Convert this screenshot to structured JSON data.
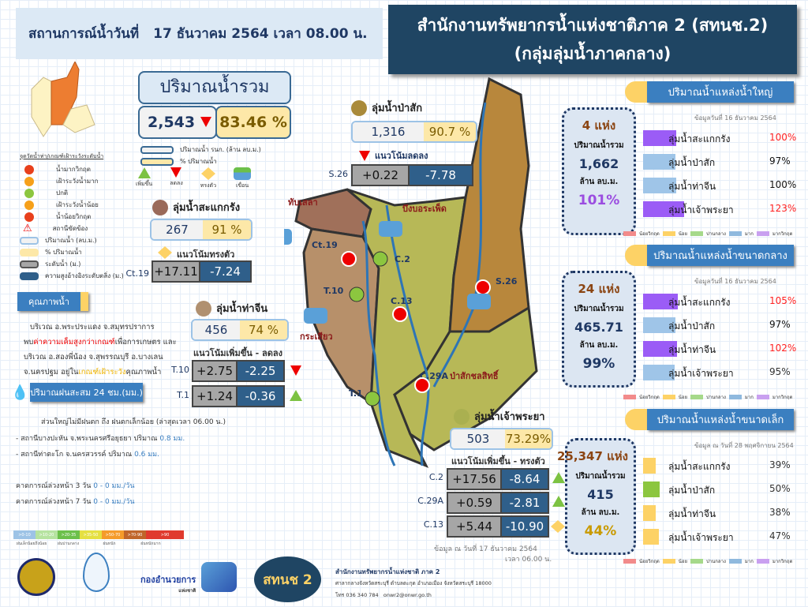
{
  "header": {
    "label": "สถานการณ์น้ำวันที่",
    "date": "17 ธันวาคม 2564 เวลา 08.00 น."
  },
  "title": {
    "line1": "สำนักงานทรัพยากรน้ำแห่งชาติภาค 2 (สทนช.2)",
    "line2": "(กลุ่มลุ่มน้ำภาคกลาง)"
  },
  "total": {
    "heading": "ปริมาณน้ำรวม",
    "volume": "2,543",
    "trend": "down",
    "percent": "83.46 %"
  },
  "box_legend": {
    "volume": "ปริมาณน้ำ รนก. (ล้าน ลบ.ม.)",
    "percent": "% ปริมาณน้ำ"
  },
  "trend_legend": {
    "up": "เพิ่มขึ้น",
    "down": "ลดลง",
    "steady": "ทรงตัว",
    "dam": "เขื่อน"
  },
  "station_legend": {
    "heading": "จุดวัดน้ำท่า/เกณฑ์เฝ้าระวังระดับน้ำ",
    "items": [
      "น้ำมากวิกฤต",
      "เฝ้าระวังน้ำมาก",
      "ปกติ",
      "เฝ้าระวังน้ำน้อย",
      "น้ำน้อยวิกฤต",
      "สถานีขัดข้อง",
      "ปริมาณน้ำ (ลบ.ม.)",
      "% ปริมาณน้ำ",
      "ระดับน้ำ (ม.)",
      "ความสูงอ้างอิงระดับตลิ่ง (ม.)"
    ]
  },
  "colors": {
    "critical": "#e8401c",
    "watch": "#f6a01a",
    "normal": "#8cc63f",
    "navy": "#1f4563",
    "up": "#7cc242",
    "down": "#e00000",
    "steady": "#fdd266"
  },
  "basins": {
    "pasak": {
      "name": "ลุ่มน้ำป่าสัก",
      "volume": "1,316",
      "percent": "90.7 %",
      "trend": "แนวโน้มลดลง",
      "stations": [
        {
          "id": "S.26",
          "level": "+0.22",
          "bank": "-7.78"
        }
      ]
    },
    "sakae": {
      "name": "ลุ่มน้ำสะแกกรัง",
      "volume": "267",
      "percent": "91 %",
      "trend": "แนวโน้มทรงตัว",
      "stations": [
        {
          "id": "Ct.19",
          "level": "+17.11",
          "bank": "-7.24"
        }
      ]
    },
    "thachin": {
      "name": "ลุ่มน้ำท่าจีน",
      "volume": "456",
      "percent": "74 %",
      "trend": "แนวโน้มเพิ่มขึ้น - ลดลง",
      "stations": [
        {
          "id": "T.10",
          "level": "+2.75",
          "bank": "-2.25",
          "trend": "down"
        },
        {
          "id": "T.1",
          "level": "+1.24",
          "bank": "-0.36",
          "trend": "up"
        }
      ]
    },
    "chao": {
      "name": "ลุ่มน้ำเจ้าพระยา",
      "volume": "503",
      "percent": "73.29%",
      "trend": "แนวโน้มเพิ่มขึ้น - ทรงตัว",
      "stations": [
        {
          "id": "C.2",
          "level": "+17.56",
          "bank": "-8.64",
          "trend": "up"
        },
        {
          "id": "C.29A",
          "level": "+0.59",
          "bank": "-2.81",
          "trend": "up"
        },
        {
          "id": "C.13",
          "level": "+5.44",
          "bank": "-10.90",
          "trend": "steady"
        }
      ],
      "note1": "ข้อมูล ณ วันที่ 17 ธันวาคม 2564",
      "note2": "เวลา 06.00 น."
    }
  },
  "map": {
    "dams": [
      "ทับเสลา",
      "บึงบอระเพ็ด",
      "กระเสียว",
      "ป่าสักชลสิทธิ์"
    ],
    "stations": [
      "Ct.19",
      "C.2",
      "T.10",
      "C.13",
      "T.1",
      "C.29A",
      "S.26"
    ]
  },
  "quality": {
    "heading": "คุณภาพน้ำ",
    "l1": "บริเวณ อ.พระประแดง จ.สมุทรปราการ",
    "l2a": "พบ",
    "l2b": "ค่าความเค็มสูงกว่าเกณฑ์",
    "l2c": "เพื่อการเกษตร และ",
    "l3": "บริเวณ อ.สองพี่น้อง จ.สุพรรณบุรี อ.บางเลน",
    "l4a": "จ.นครปฐม อยู่ใน",
    "l4b": "เกณฑ์เฝ้าระวัง",
    "l4c": "คุณภาพน้ำ"
  },
  "rain": {
    "heading": "ปริมาณฝนสะสม 24 ชม.(มม.)",
    "summary": "ส่วนใหญ่ไม่มีฝนตก ถึง ฝนตกเล็กน้อย (ล่าสุดเวลา 06.00 น.)",
    "s1": "- สถานีบางปะหัน จ.พระนครศรีอยุธยา ปริมาณ",
    "s1v": "0.8 มม.",
    "s2": "- สถานีท่าตะโก จ.นครสวรรค์ ปริมาณ",
    "s2v": "0.6 มม.",
    "f3": "คาดการณ์ล่วงหน้า 3 วัน",
    "f3v": "0 - 0 มม./วัน",
    "f7": "คาดการณ์ล่วงหน้า 7 วัน",
    "f7v": "0 - 0 มม./วัน",
    "scale": [
      {
        "r": ">0-10",
        "c": "#9dc3e6"
      },
      {
        "r": ">10-20",
        "c": "#b6e3a0"
      },
      {
        "r": ">20-35",
        "c": "#6cc04a"
      },
      {
        "r": ">35-50",
        "c": "#e5e042"
      },
      {
        "r": ">50-70",
        "c": "#f59b2a"
      },
      {
        "r": ">70-90",
        "c": "#c0652a"
      },
      {
        "r": ">90",
        "c": "#e03a2e"
      }
    ],
    "scale_labels": [
      "ฝนเล็กน้อยถึงน้อย",
      "ฝนปานกลาง",
      "ฝนหนัก",
      "ฝนหนักมาก"
    ]
  },
  "logos": {
    "did": "กองอำนวยการ",
    "did2": "แห่งชาติ",
    "onwr": "สทนช 2"
  },
  "footer": {
    "org": "สำนักงานทรัพยากรน้ำแห่งชาติ ภาค 2",
    "addr": "ศาลากลางจังหวัดสระบุรี ตำบลตะกุด อำเภอเมือง จังหวัดสระบุรี 18000",
    "tel": "โทร 036 340 784",
    "email": "onwr2@onwr.go.th"
  },
  "res_legend": [
    "น้อยวิกฤต",
    "น้อย",
    "ปานกลาง",
    "มาก",
    "มากวิกฤต"
  ],
  "res_legend_colors": [
    "#f28b8b",
    "#fdd266",
    "#a6d98a",
    "#8fb9de",
    "#c9a0f0"
  ],
  "reservoirs": [
    {
      "heading": "ปริมาณน้ำแหล่งน้ำใหญ่",
      "count": "4 แห่ง",
      "label": "ปริมาณน้ำรวม",
      "volume": "1,662",
      "unit": "ล้าน ลบ.ม.",
      "percent": "101%",
      "pct_color": "#9b4de0",
      "date": "ข้อมูลวันที่ 16 ธันวาคม 2564",
      "items": [
        {
          "name": "ลุ่มน้ำสะแกกรัง",
          "pct": "100%",
          "value": 100,
          "color": "#9b5cf6",
          "pc": "#ff2020"
        },
        {
          "name": "ลุ่มน้ำป่าสัก",
          "pct": "97%",
          "value": 97,
          "color": "#9fc5e8",
          "pc": "#111"
        },
        {
          "name": "ลุ่มน้ำท่าจีน",
          "pct": "100%",
          "value": 100,
          "color": "#9fc5e8",
          "pc": "#111"
        },
        {
          "name": "ลุ่มน้ำเจ้าพระยา",
          "pct": "123%",
          "value": 123,
          "color": "#9b5cf6",
          "pc": "#ff2020"
        }
      ]
    },
    {
      "heading": "ปริมาณน้ำแหล่งน้ำขนาดกลาง",
      "count": "24 แห่ง",
      "label": "ปริมาณน้ำรวม",
      "volume": "465.71",
      "unit": "ล้าน ลบ.ม.",
      "percent": "99%",
      "pct_color": "#1f3864",
      "date": "ข้อมูลวันที่ 16 ธันวาคม 2564",
      "items": [
        {
          "name": "ลุ่มน้ำสะแกกรัง",
          "pct": "105%",
          "value": 105,
          "color": "#9b5cf6",
          "pc": "#ff2020"
        },
        {
          "name": "ลุ่มน้ำป่าสัก",
          "pct": "97%",
          "value": 97,
          "color": "#9fc5e8",
          "pc": "#111"
        },
        {
          "name": "ลุ่มน้ำท่าจีน",
          "pct": "102%",
          "value": 102,
          "color": "#9b5cf6",
          "pc": "#ff2020"
        },
        {
          "name": "ลุ่มน้ำเจ้าพระยา",
          "pct": "95%",
          "value": 95,
          "color": "#9fc5e8",
          "pc": "#333"
        }
      ]
    },
    {
      "heading": "ปริมาณน้ำแหล่งน้ำขนาดเล็ก",
      "count": "25,347 แห่ง",
      "label": "ปริมาณน้ำรวม",
      "volume": "415",
      "unit": "ล้าน ลบ.ม.",
      "percent": "44%",
      "pct_color": "#c99a00",
      "date": "ข้อมูล ณ วันที่ 28 พฤศจิกายน 2564",
      "items": [
        {
          "name": "ลุ่มน้ำสะแกกรัง",
          "pct": "39%",
          "value": 39,
          "color": "#fdd266",
          "pc": "#333"
        },
        {
          "name": "ลุ่มน้ำป่าสัก",
          "pct": "50%",
          "value": 50,
          "color": "#8cc63f",
          "pc": "#333"
        },
        {
          "name": "ลุ่มน้ำท่าจีน",
          "pct": "38%",
          "value": 38,
          "color": "#fdd266",
          "pc": "#333"
        },
        {
          "name": "ลุ่มน้ำเจ้าพระยา",
          "pct": "47%",
          "value": 47,
          "color": "#fdd266",
          "pc": "#333"
        }
      ]
    }
  ]
}
